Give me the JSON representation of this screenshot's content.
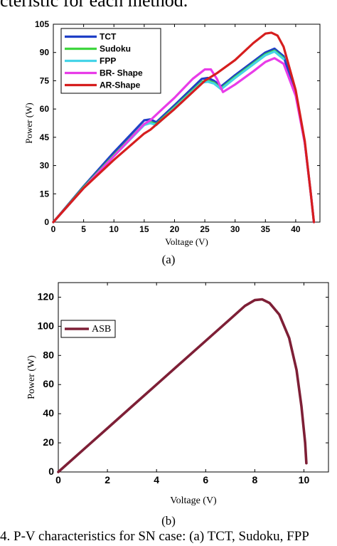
{
  "page": {
    "top_text": "cteristic for each method.",
    "label_a": "(a)",
    "label_b": "(b)",
    "caption": "4. P-V characteristics for SN case: (a) TCT, Sudoku, FPP"
  },
  "chart_data": [
    {
      "type": "line",
      "xlabel": "Voltage (V)",
      "ylabel": "Power (W)",
      "xlim": [
        0,
        44
      ],
      "ylim": [
        0,
        105
      ],
      "xticks": [
        0,
        5,
        10,
        15,
        20,
        25,
        30,
        35,
        40
      ],
      "yticks": [
        0,
        15,
        30,
        45,
        60,
        75,
        90,
        105
      ],
      "legend_position": "top-left",
      "series": [
        {
          "name": "TCT",
          "color": "#1f3fc6",
          "points": [
            [
              0,
              0
            ],
            [
              5,
              19
            ],
            [
              10,
              37
            ],
            [
              15,
              54
            ],
            [
              16,
              54.5
            ],
            [
              17,
              53
            ],
            [
              20,
              62
            ],
            [
              24.5,
              76
            ],
            [
              25.5,
              76.5
            ],
            [
              26.5,
              75
            ],
            [
              27.7,
              72
            ],
            [
              30,
              78
            ],
            [
              35,
              90
            ],
            [
              36.5,
              92
            ],
            [
              38,
              88
            ],
            [
              40,
              68
            ],
            [
              41.5,
              42
            ],
            [
              42.5,
              15
            ],
            [
              43,
              0
            ]
          ]
        },
        {
          "name": "Sudoku",
          "color": "#3fd63f",
          "points": [
            [
              0,
              0
            ],
            [
              5,
              18.5
            ],
            [
              10,
              35.5
            ],
            [
              15,
              52
            ],
            [
              16,
              53
            ],
            [
              17,
              52
            ],
            [
              20,
              61
            ],
            [
              24.5,
              74.5
            ],
            [
              25.5,
              75
            ],
            [
              26.5,
              74
            ],
            [
              27.7,
              71
            ],
            [
              30,
              77
            ],
            [
              35,
              89
            ],
            [
              36.5,
              91
            ],
            [
              38,
              87
            ]
          ]
        },
        {
          "name": "FPP",
          "color": "#46d4e8",
          "points": [
            [
              0,
              0
            ],
            [
              5,
              18
            ],
            [
              10,
              35
            ],
            [
              15,
              51.5
            ],
            [
              16,
              52.5
            ],
            [
              17,
              51.5
            ],
            [
              20,
              60.5
            ],
            [
              24.5,
              74
            ],
            [
              25.5,
              74.5
            ],
            [
              26.5,
              73.5
            ],
            [
              27.7,
              70.5
            ],
            [
              30,
              76.5
            ],
            [
              35,
              88.5
            ],
            [
              36.5,
              90.5
            ],
            [
              38,
              86.5
            ]
          ]
        },
        {
          "name": "BR- Shape",
          "color": "#e83ce8",
          "points": [
            [
              0,
              0
            ],
            [
              5,
              18
            ],
            [
              10,
              35
            ],
            [
              15,
              52
            ],
            [
              16,
              54
            ],
            [
              18,
              60
            ],
            [
              20,
              66
            ],
            [
              23,
              76
            ],
            [
              25,
              81
            ],
            [
              26,
              81
            ],
            [
              27,
              76
            ],
            [
              28,
              69
            ],
            [
              30,
              73
            ],
            [
              33,
              80
            ],
            [
              35,
              85
            ],
            [
              36.5,
              87
            ],
            [
              38,
              84
            ],
            [
              40,
              67
            ],
            [
              41.5,
              42
            ],
            [
              42.5,
              15
            ],
            [
              43,
              0
            ]
          ]
        },
        {
          "name": "AR-Shape",
          "color": "#d61e1e",
          "points": [
            [
              0,
              0
            ],
            [
              5,
              18
            ],
            [
              6,
              21
            ],
            [
              10,
              33
            ],
            [
              15,
              47
            ],
            [
              16,
              49
            ],
            [
              20,
              60
            ],
            [
              25,
              75
            ],
            [
              27,
              79
            ],
            [
              30,
              86
            ],
            [
              33,
              95
            ],
            [
              35,
              100
            ],
            [
              36,
              100.5
            ],
            [
              37,
              99
            ],
            [
              38,
              93
            ],
            [
              40,
              70
            ],
            [
              41.5,
              43
            ],
            [
              42.5,
              15
            ],
            [
              43,
              0
            ]
          ]
        }
      ]
    },
    {
      "type": "line",
      "xlabel": "Voltage (V)",
      "ylabel": "Power (W)",
      "xlim": [
        0,
        11
      ],
      "ylim": [
        0,
        130
      ],
      "xticks": [
        0,
        2,
        4,
        6,
        8,
        10
      ],
      "yticks": [
        0,
        20,
        40,
        60,
        80,
        100,
        120
      ],
      "legend_position": "top-left",
      "series": [
        {
          "name": "ASB",
          "color": "#7e1f36",
          "points": [
            [
              0,
              0
            ],
            [
              1,
              15
            ],
            [
              2,
              30
            ],
            [
              3,
              45
            ],
            [
              4,
              60
            ],
            [
              5,
              75
            ],
            [
              6,
              90
            ],
            [
              7,
              105
            ],
            [
              7.6,
              114
            ],
            [
              8,
              118
            ],
            [
              8.3,
              118.5
            ],
            [
              8.6,
              116
            ],
            [
              9,
              108
            ],
            [
              9.4,
              92
            ],
            [
              9.7,
              70
            ],
            [
              9.9,
              45
            ],
            [
              10.05,
              20
            ],
            [
              10.1,
              6
            ]
          ]
        }
      ]
    }
  ]
}
